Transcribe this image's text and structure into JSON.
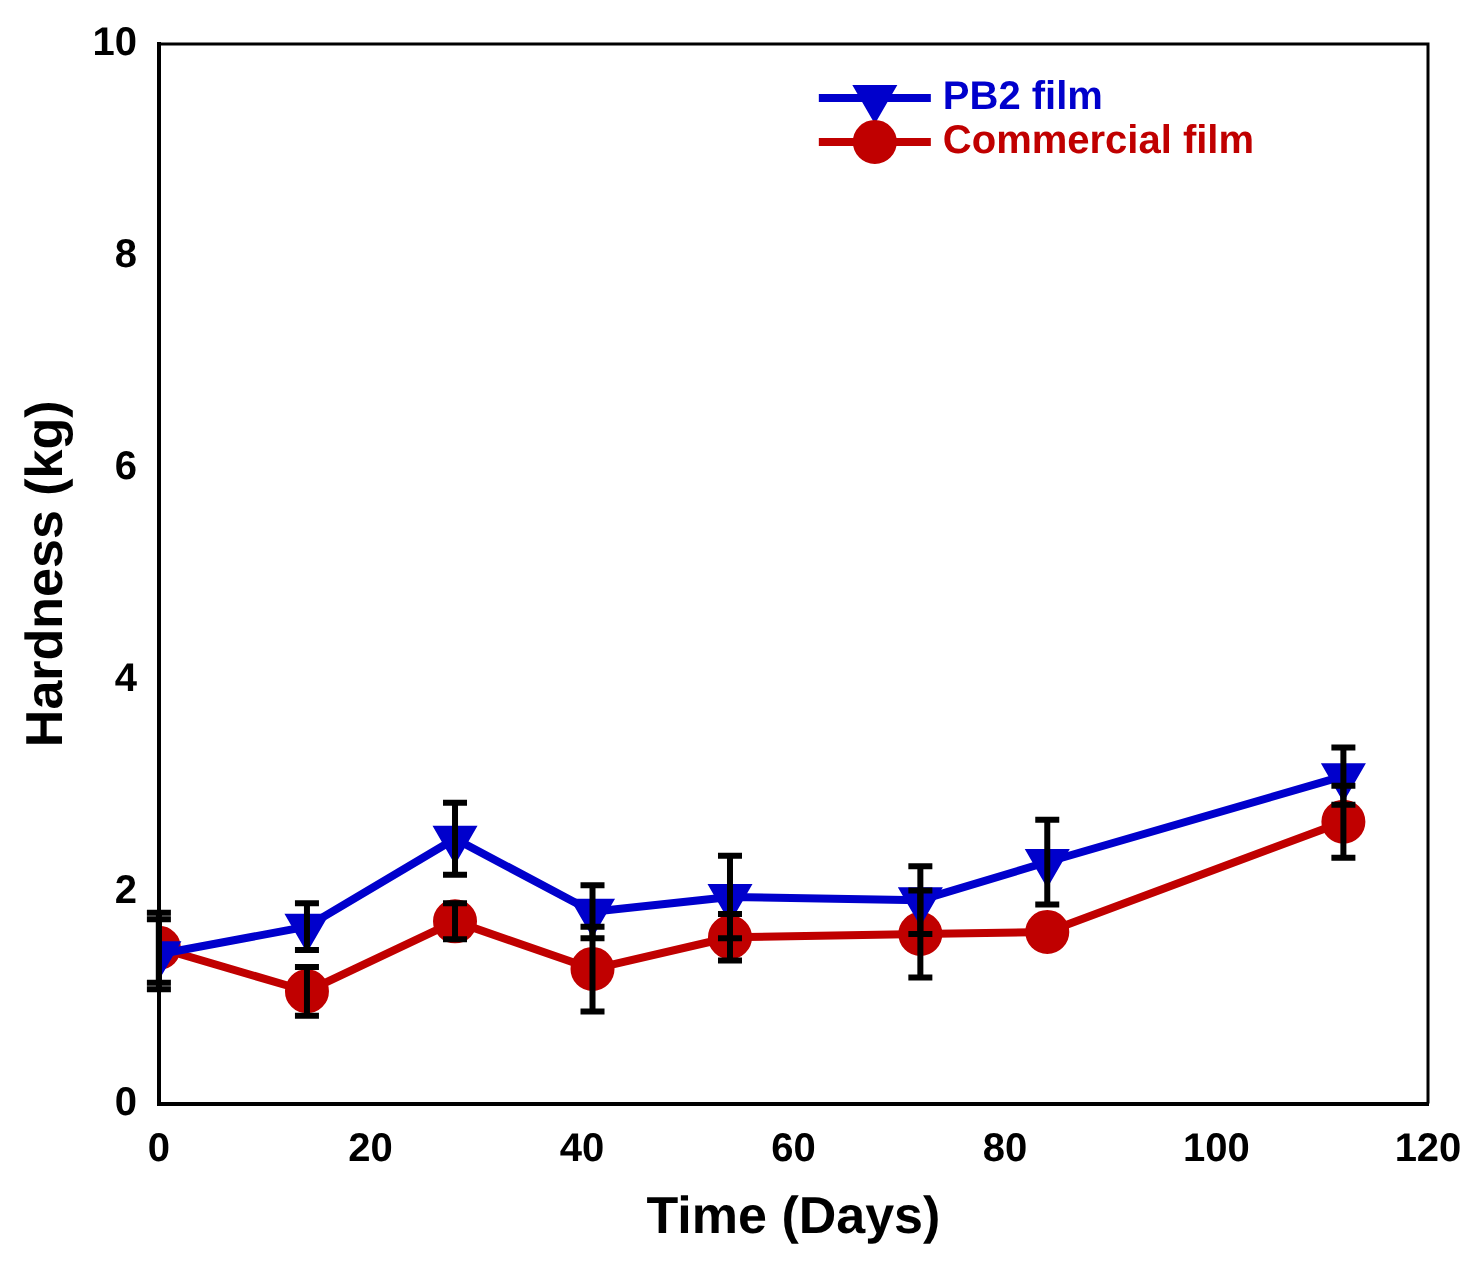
{
  "chart_data": {
    "type": "line",
    "xlabel": "Time (Days)",
    "ylabel": "Hardness (kg)",
    "x": [
      0,
      14,
      28,
      41,
      54,
      72,
      84,
      112
    ],
    "xlim": [
      0,
      120
    ],
    "xticks": [
      0,
      20,
      40,
      60,
      80,
      100,
      120
    ],
    "ylim": [
      0,
      10
    ],
    "yticks": [
      0,
      2,
      4,
      6,
      8,
      10
    ],
    "grid": false,
    "legend": "top right",
    "series": [
      {
        "name": "PB2 film",
        "color": "#0000cc",
        "marker": "triangle",
        "values": [
          1.41,
          1.67,
          2.5,
          1.81,
          1.95,
          1.92,
          2.28,
          3.09
        ],
        "errors": [
          0.33,
          0.22,
          0.34,
          0.25,
          0.39,
          0.32,
          0.4,
          0.27
        ]
      },
      {
        "name": "Commercial film",
        "color": "#c00000",
        "marker": "circle",
        "values": [
          1.47,
          1.06,
          1.72,
          1.27,
          1.57,
          1.6,
          1.62,
          2.66
        ],
        "errors": [
          0.33,
          0.23,
          0.17,
          0.4,
          0.22,
          0.41,
          null,
          0.34
        ]
      }
    ]
  }
}
